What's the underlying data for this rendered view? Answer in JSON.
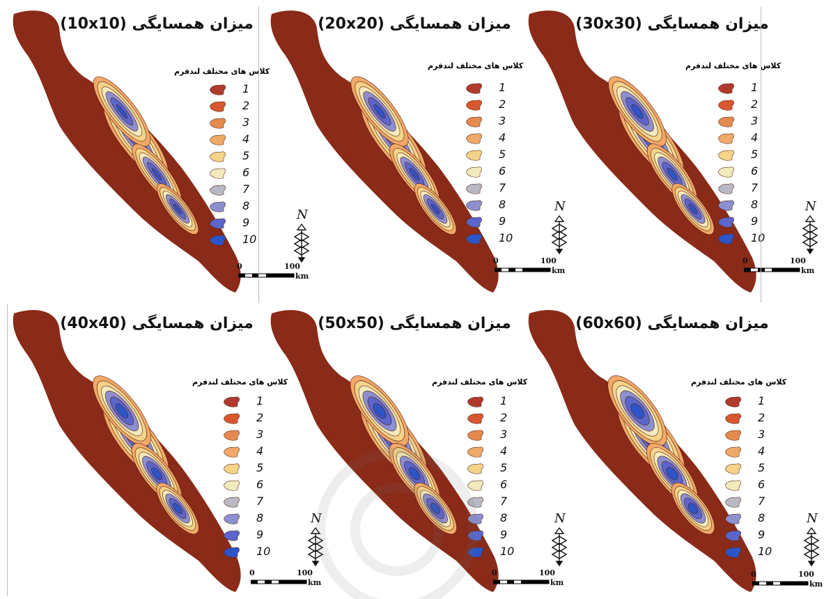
{
  "legend_title": "کلاس های مختلف لندفرم",
  "legend_classes": [
    "1",
    "2",
    "3",
    "4",
    "5",
    "6",
    "7",
    "8",
    "9",
    "10"
  ],
  "legend_colors": [
    "#b03a2e",
    "#d9572f",
    "#e58a4f",
    "#f0a968",
    "#f5d48a",
    "#f2ebbd",
    "#b9b9c4",
    "#8c8fd0",
    "#5a66cc",
    "#2c55c8"
  ],
  "base_color": "#8a2a18",
  "scale": {
    "zero": "0",
    "max": "100",
    "unit": "km"
  },
  "north_label": "N",
  "panels": [
    {
      "title": "میزان همسایگی (10x10)"
    },
    {
      "title": "میزان همسایگی (20x20)"
    },
    {
      "title": "میزان همسایگی (30x30)"
    },
    {
      "title": "میزان همسایگی (40x40)"
    },
    {
      "title": "میزان همسایگی (50x50)"
    },
    {
      "title": "میزان همسایگی (60x60)"
    }
  ]
}
